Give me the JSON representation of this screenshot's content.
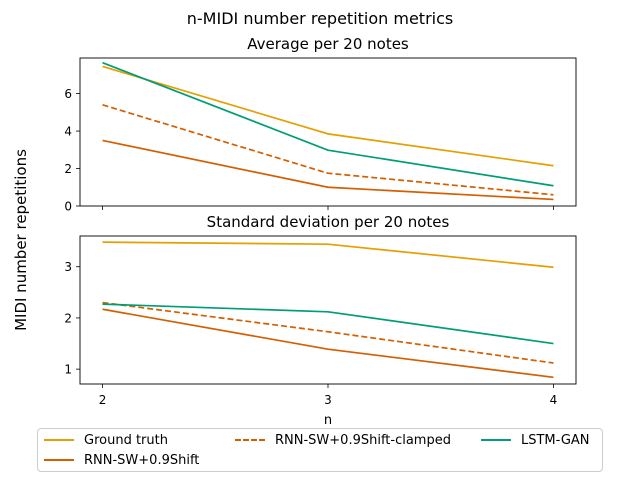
{
  "chart_data": {
    "type": "line",
    "suptitle": "n-MIDI number repetition metrics",
    "ylabel": "MIDI number repetitions",
    "xlabel": "n",
    "x": [
      2,
      3,
      4
    ],
    "xticks": [
      "2",
      "3",
      "4"
    ],
    "series_meta": [
      {
        "name": "Ground truth",
        "color": "#E69F00",
        "dash": false
      },
      {
        "name": "RNN-SW+0.9Shift",
        "color": "#D55E00",
        "dash": false
      },
      {
        "name": "RNN-SW+0.9Shift-clamped",
        "color": "#D55E00",
        "dash": true
      },
      {
        "name": "LSTM-GAN",
        "color": "#009E73",
        "dash": false
      }
    ],
    "panels": [
      {
        "title": "Average per 20 notes",
        "ylim": [
          0,
          7.9
        ],
        "yticks": [
          0,
          2,
          4,
          6
        ],
        "series": [
          {
            "name": "Ground truth",
            "values": [
              7.45,
              3.85,
              2.15
            ]
          },
          {
            "name": "RNN-SW+0.9Shift",
            "values": [
              3.5,
              1.0,
              0.35
            ]
          },
          {
            "name": "RNN-SW+0.9Shift-clamped",
            "values": [
              5.4,
              1.75,
              0.6
            ]
          },
          {
            "name": "LSTM-GAN",
            "values": [
              7.65,
              2.98,
              1.08
            ]
          }
        ]
      },
      {
        "title": "Standard deviation per 20 notes",
        "ylim": [
          0.71,
          3.6
        ],
        "yticks": [
          1,
          2,
          3
        ],
        "series": [
          {
            "name": "Ground truth",
            "values": [
              3.48,
              3.44,
              2.99
            ]
          },
          {
            "name": "RNN-SW+0.9Shift",
            "values": [
              2.17,
              1.39,
              0.84
            ]
          },
          {
            "name": "RNN-SW+0.9Shift-clamped",
            "values": [
              2.3,
              1.73,
              1.12
            ]
          },
          {
            "name": "LSTM-GAN",
            "values": [
              2.27,
              2.12,
              1.5
            ]
          }
        ]
      }
    ],
    "legend": {
      "placement": "bottom",
      "columns": 3,
      "order": [
        "Ground truth",
        "RNN-SW+0.9Shift",
        "RNN-SW+0.9Shift-clamped",
        "LSTM-GAN"
      ]
    }
  }
}
